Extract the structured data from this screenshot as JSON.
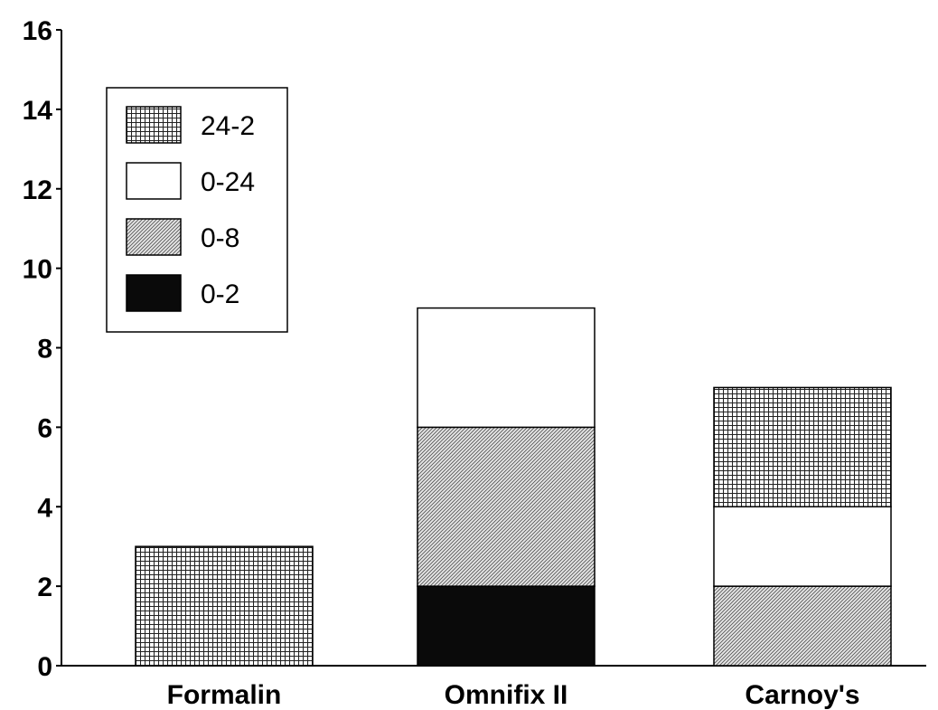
{
  "chart_data": {
    "type": "bar",
    "stacked": true,
    "categories": [
      "Formalin",
      "Omnifix II",
      "Carnoy's"
    ],
    "series": [
      {
        "name": "0-2",
        "values": [
          0,
          2,
          0
        ],
        "pattern": "solid-black"
      },
      {
        "name": "0-8",
        "values": [
          0,
          4,
          2
        ],
        "pattern": "diagonal-stipple"
      },
      {
        "name": "0-24",
        "values": [
          0,
          3,
          2
        ],
        "pattern": "white"
      },
      {
        "name": "24-2",
        "values": [
          3,
          0,
          3
        ],
        "pattern": "crosshatch"
      }
    ],
    "legend_order": [
      "24-2",
      "0-24",
      "0-8",
      "0-2"
    ],
    "ylim": [
      0,
      16
    ],
    "yticks": [
      0,
      2,
      4,
      6,
      8,
      10,
      12,
      14,
      16
    ],
    "title": "",
    "xlabel": "",
    "ylabel": "",
    "grid": false,
    "legend_position": "top-left"
  }
}
